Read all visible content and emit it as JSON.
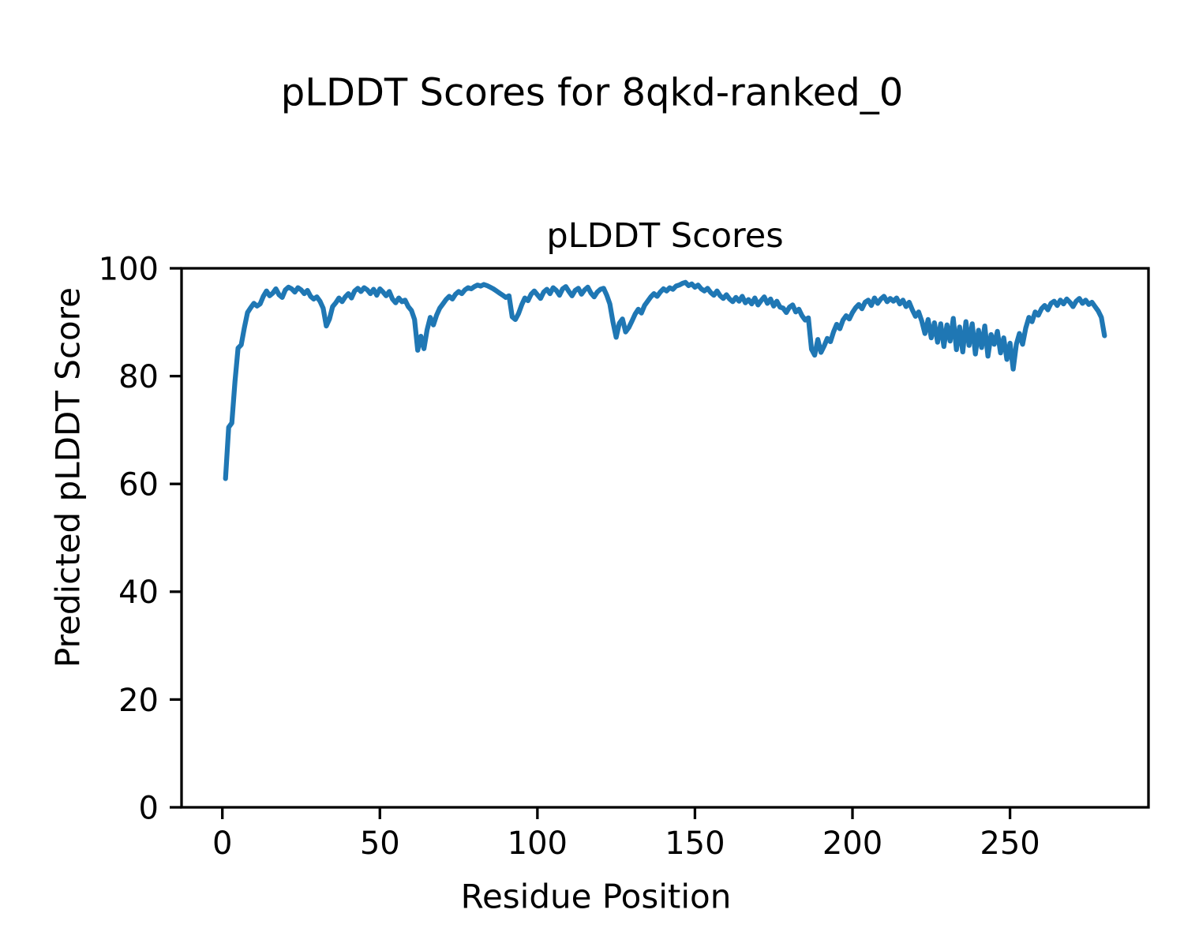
{
  "figure": {
    "suptitle": "pLDDT Scores for 8qkd-ranked_0",
    "background_color": "#ffffff",
    "text_color": "#000000"
  },
  "chart_data": {
    "type": "line",
    "title": "pLDDT Scores",
    "xlabel": "Residue Position",
    "ylabel": "Predicted pLDDT Score",
    "legend": "none",
    "grid": false,
    "line_color": "#1f77b4",
    "axis_color": "#000000",
    "xlim": [
      -12.95,
      293.95
    ],
    "ylim": [
      0,
      100
    ],
    "x_ticks": [
      0,
      50,
      100,
      150,
      200,
      250
    ],
    "y_ticks": [
      0,
      20,
      40,
      60,
      80,
      100
    ],
    "series": [
      {
        "name": "pLDDT",
        "x_start": 1,
        "x_step": 1,
        "values": [
          61.0,
          70.5,
          71.3,
          79.0,
          85.2,
          85.8,
          89.0,
          91.8,
          92.7,
          93.5,
          93.0,
          93.4,
          94.8,
          95.8,
          94.9,
          95.4,
          96.2,
          95.1,
          94.6,
          96.0,
          96.5,
          96.2,
          95.6,
          96.4,
          96.0,
          95.3,
          95.9,
          94.8,
          94.3,
          94.7,
          93.9,
          92.6,
          89.3,
          90.6,
          92.9,
          93.6,
          94.5,
          93.8,
          94.7,
          95.3,
          94.5,
          95.8,
          96.3,
          95.7,
          96.4,
          96.0,
          95.3,
          96.1,
          95.0,
          96.2,
          95.6,
          94.9,
          95.7,
          94.3,
          93.6,
          94.5,
          93.8,
          94.1,
          92.9,
          92.2,
          90.5,
          84.8,
          87.4,
          85.1,
          88.6,
          90.9,
          89.5,
          91.3,
          92.6,
          93.4,
          94.2,
          94.8,
          94.3,
          95.2,
          95.7,
          95.3,
          96.0,
          96.4,
          96.2,
          96.6,
          96.9,
          96.7,
          97.0,
          96.8,
          96.5,
          96.2,
          95.8,
          95.4,
          95.0,
          94.6,
          94.9,
          91.0,
          90.5,
          91.6,
          93.2,
          94.5,
          94.0,
          95.2,
          95.8,
          95.1,
          94.4,
          95.6,
          96.1,
          95.3,
          96.4,
          95.9,
          95.0,
          96.2,
          96.6,
          95.7,
          94.9,
          95.9,
          96.3,
          95.2,
          96.0,
          96.5,
          95.4,
          94.7,
          95.6,
          96.1,
          96.3,
          95.0,
          93.4,
          90.0,
          87.2,
          89.8,
          90.6,
          88.2,
          89.0,
          90.2,
          91.5,
          92.4,
          91.7,
          93.1,
          93.9,
          94.7,
          95.3,
          94.8,
          95.6,
          96.2,
          95.8,
          96.4,
          96.1,
          96.7,
          96.9,
          97.2,
          97.4,
          96.8,
          97.1,
          96.5,
          96.9,
          96.2,
          95.8,
          96.3,
          95.5,
          95.0,
          95.8,
          94.9,
          94.4,
          95.1,
          94.3,
          93.8,
          94.6,
          93.9,
          94.8,
          93.6,
          94.2,
          93.4,
          94.5,
          93.2,
          94.0,
          94.7,
          93.5,
          94.3,
          93.0,
          93.9,
          92.8,
          92.6,
          91.8,
          92.8,
          93.2,
          91.9,
          92.4,
          91.2,
          90.4,
          90.8,
          85.0,
          83.9,
          86.8,
          84.4,
          85.6,
          87.0,
          86.4,
          88.2,
          89.6,
          88.8,
          90.4,
          91.2,
          90.6,
          91.8,
          92.7,
          93.3,
          92.5,
          93.7,
          94.1,
          93.1,
          94.5,
          93.5,
          94.3,
          94.8,
          93.8,
          94.4,
          93.9,
          94.5,
          93.4,
          94.1,
          92.9,
          93.7,
          92.3,
          91.1,
          91.9,
          90.2,
          87.9,
          90.5,
          87.1,
          89.9,
          86.3,
          89.7,
          85.5,
          89.5,
          86.5,
          90.7,
          84.9,
          89.1,
          84.5,
          90.1,
          85.7,
          89.7,
          84.1,
          88.5,
          85.3,
          89.3,
          83.7,
          87.7,
          85.9,
          88.3,
          84.3,
          87.1,
          83.1,
          86.1,
          81.3,
          85.9,
          87.9,
          85.9,
          88.9,
          90.9,
          90.1,
          91.9,
          91.3,
          92.5,
          93.1,
          92.3,
          93.5,
          93.9,
          93.1,
          94.1,
          93.4,
          94.3,
          93.7,
          92.9,
          93.9,
          94.4,
          93.5,
          94.1,
          93.3,
          93.7,
          92.9,
          92.1,
          90.9,
          87.5
        ]
      }
    ]
  }
}
